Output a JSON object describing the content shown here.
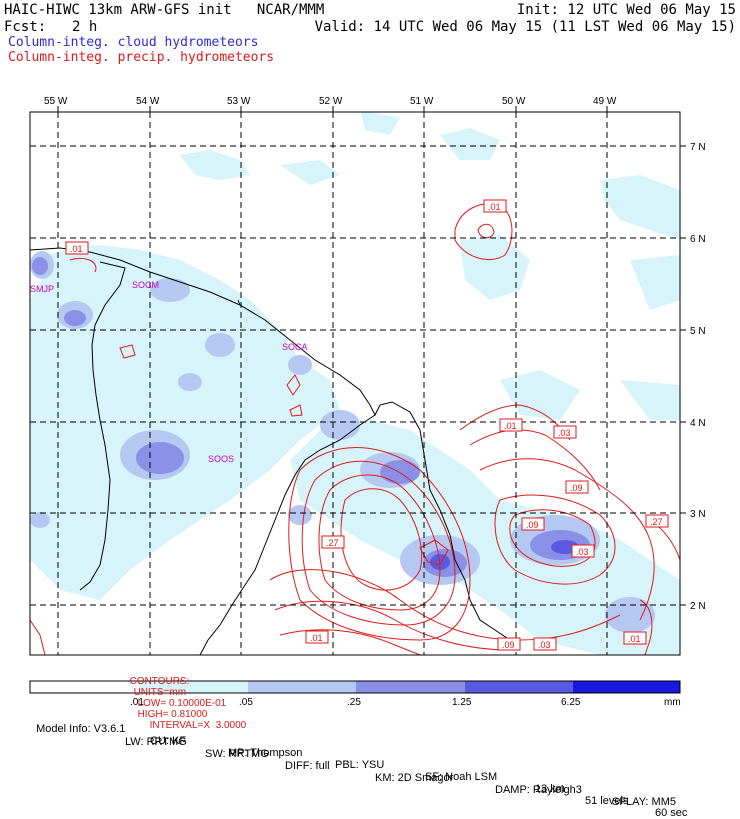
{
  "header": {
    "title": "HAIC-HIWC 13km ARW-GFS init   NCAR/MMM",
    "fcst_label": "Fcst:",
    "fcst_value": "2 h",
    "init": "Init: 12 UTC Wed 06 May 15",
    "valid": "Valid: 14 UTC Wed 06 May 15 (11 LST Wed 06 May 15)",
    "field1": "Column-integ. cloud hydrometeors",
    "field2": "Column-integ. precip. hydrometeors"
  },
  "colors": {
    "field1": "#2b2bd6",
    "field2": "#e01a1a",
    "contour": "#e01a1a",
    "station": "#c400c4",
    "shade1": "#d6f4fa",
    "shade2": "#b5c8f2",
    "shade3": "#8a90e6",
    "shade4": "#5a5ae0",
    "shade5": "#3030dc",
    "shade6": "#1010e0"
  },
  "map": {
    "lon_labels": [
      "55 W",
      "54 W",
      "53 W",
      "52 W",
      "51 W",
      "50 W",
      "49 W"
    ],
    "lat_labels": [
      "7 N",
      "6 N",
      "5 N",
      "4 N",
      "3 N",
      "2 N"
    ],
    "stations": [
      "SMJP",
      "SOCM",
      "SOCA",
      "SOOS"
    ],
    "contour_labels": [
      ".01",
      ".01",
      ".01",
      ".03",
      ".09",
      ".27",
      ".09",
      ".03",
      ".27",
      ".01",
      ".09",
      ".03",
      ".01"
    ]
  },
  "contours_line": {
    "contours": "CONTOURS:",
    "units": "UNITS=mm",
    "low": "LOW= 0.10000E-01",
    "high": "HIGH= 0.81000",
    "interval": "INTERVAL=X  3.0000"
  },
  "colorbar": {
    "ticks": [
      ".01",
      ".05",
      ".25",
      "1.25",
      "6.25"
    ],
    "unit": "mm"
  },
  "model_info": {
    "line1": [
      "Model Info: V3.6.1",
      "CU: KF",
      "MP: Thompson",
      "PBL: YSU",
      "SF: Noah LSM",
      "13 km",
      "51 levels",
      "60 sec"
    ],
    "line2": [
      "LW: RRTMG",
      "SW: RRTMG",
      "DIFF: full",
      "KM: 2D Smagor",
      "DAMP: Rayleigh3",
      "SFLAY: MM5"
    ]
  }
}
